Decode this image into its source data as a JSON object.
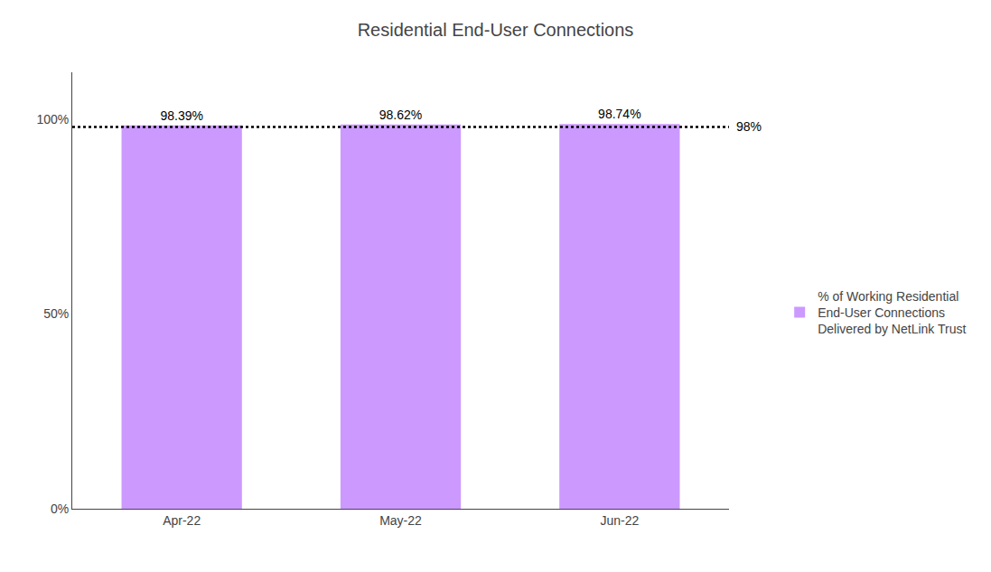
{
  "chart_data": {
    "type": "bar",
    "title": "Residential End-User Connections",
    "categories": [
      "Apr-22",
      "May-22",
      "Jun-22"
    ],
    "series": [
      {
        "name": "% of Working Residential\nEnd-User Connections\nDelivered by NetLink Trust",
        "color": "#CC99FF",
        "values": [
          98.39,
          98.62,
          98.74
        ],
        "value_labels": [
          "98.39%",
          "98.62%",
          "98.74%"
        ]
      }
    ],
    "data_labels": true,
    "reference_line": {
      "value": 98,
      "label": "98%",
      "line_style": "dotted"
    },
    "ylim": [
      0,
      112
    ],
    "yticks": [
      {
        "value": 0,
        "label": "0%"
      },
      {
        "value": 50,
        "label": "50%"
      },
      {
        "value": 100,
        "label": "100%"
      }
    ],
    "grid": false,
    "legend": "right"
  }
}
